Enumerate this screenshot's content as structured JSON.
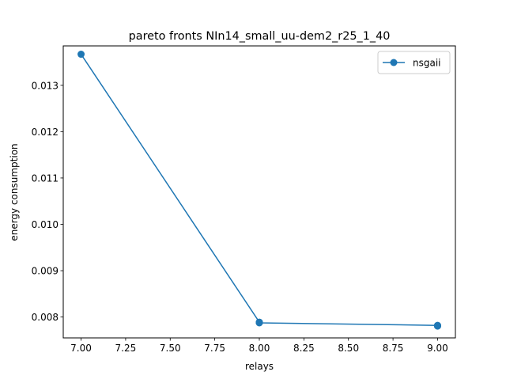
{
  "chart_data": {
    "type": "line",
    "title": "pareto fronts NIn14_small_uu-dem2_r25_1_40",
    "xlabel": "relays",
    "ylabel": "energy consumption",
    "xlim": [
      6.9,
      9.1
    ],
    "ylim": [
      0.00755,
      0.01385
    ],
    "xticks": [
      7.0,
      7.25,
      7.5,
      7.75,
      8.0,
      8.25,
      8.5,
      8.75,
      9.0
    ],
    "xtick_labels": [
      "7.00",
      "7.25",
      "7.50",
      "7.75",
      "8.00",
      "8.25",
      "8.50",
      "8.75",
      "9.00"
    ],
    "yticks": [
      0.008,
      0.009,
      0.01,
      0.011,
      0.012,
      0.013
    ],
    "ytick_labels": [
      "0.008",
      "0.009",
      "0.010",
      "0.011",
      "0.012",
      "0.013"
    ],
    "grid": false,
    "legend_position": "top-right",
    "series": [
      {
        "name": "nsgaii",
        "color": "#1f77b4",
        "marker": "circle",
        "x": [
          7,
          8,
          8,
          8,
          8,
          9,
          9,
          9,
          9
        ],
        "y": [
          0.01367,
          0.00789,
          0.007885,
          0.00788,
          0.007875,
          0.00782,
          0.007815,
          0.00781,
          0.007805
        ]
      }
    ]
  }
}
